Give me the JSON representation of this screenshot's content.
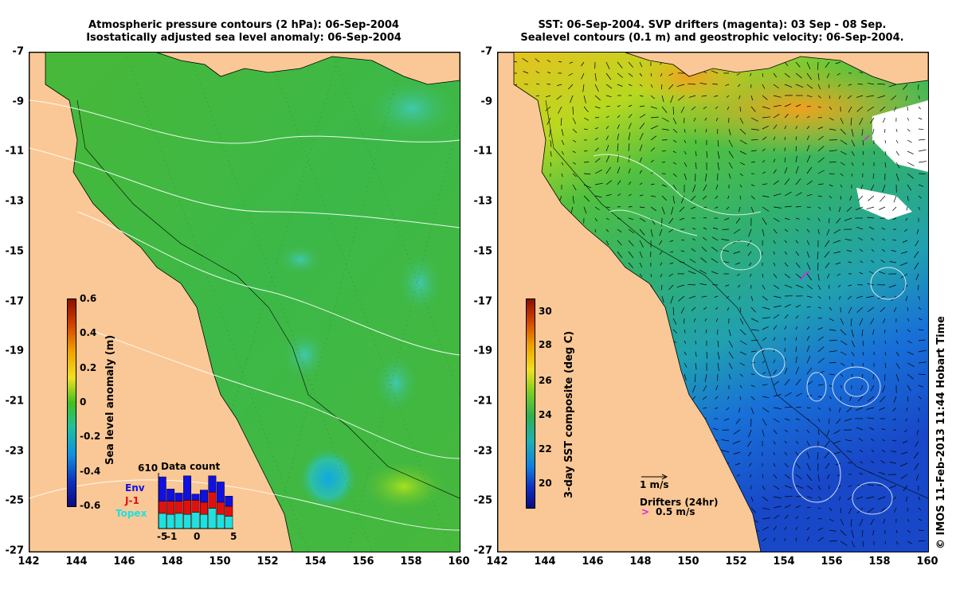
{
  "left_panel": {
    "title_line1": "Atmospheric pressure contours (2 hPa): 06-Sep-2004",
    "title_line2": "Isostatically adjusted sea level anomaly: 06-Sep-2004",
    "colorbar": {
      "title": "Sea level anomaly (m)",
      "ticks": [
        "0.6",
        "0.4",
        "0.2",
        "0",
        "-0.2",
        "-0.4",
        "-0.6"
      ],
      "range": [
        -0.6,
        0.6
      ]
    },
    "inset": {
      "title": "Data count",
      "ymax_label": "610",
      "legend": [
        {
          "label": "Env",
          "color": "#1010e0"
        },
        {
          "label": "J-1",
          "color": "#e01010"
        },
        {
          "label": "Topex",
          "color": "#20e0e0"
        }
      ],
      "xticks": [
        "-5",
        "-1",
        "0",
        "5"
      ],
      "bars": [
        {
          "day": -5,
          "topex": 15,
          "j1": 12,
          "env": 24
        },
        {
          "day": -4,
          "topex": 14,
          "j1": 13,
          "env": 12
        },
        {
          "day": -3,
          "topex": 15,
          "j1": 12,
          "env": 8
        },
        {
          "day": -2,
          "topex": 14,
          "j1": 14,
          "env": 24
        },
        {
          "day": -1,
          "topex": 16,
          "j1": 12,
          "env": 6
        },
        {
          "day": 0,
          "topex": 14,
          "j1": 12,
          "env": 12
        },
        {
          "day": 1,
          "topex": 20,
          "j1": 16,
          "env": 16
        },
        {
          "day": 2,
          "topex": 14,
          "j1": 12,
          "env": 20
        },
        {
          "day": 3,
          "topex": 12,
          "j1": 10,
          "env": 10
        }
      ]
    }
  },
  "right_panel": {
    "title_line1": "SST: 06-Sep-2004. SVP drifters (magenta): 03 Sep - 08 Sep.",
    "title_line2": "Sealevel contours (0.1 m) and geostrophic velocity: 06-Sep-2004.",
    "colorbar": {
      "title": "3-day SST composite (deg C)",
      "ticks": [
        "30",
        "28",
        "26",
        "24",
        "22",
        "20"
      ],
      "range": [
        19,
        31
      ]
    },
    "velocity_legend": "1 m/s",
    "drifters_legend_title": "Drifters (24hr)",
    "drifters_legend_speed": "0.5 m/s",
    "drifters_arrow_glyph": ">"
  },
  "axes": {
    "xticks": [
      "142",
      "144",
      "146",
      "148",
      "150",
      "152",
      "154",
      "156",
      "158",
      "160"
    ],
    "yticks": [
      "-7",
      "-9",
      "-11",
      "-13",
      "-15",
      "-17",
      "-19",
      "-21",
      "-23",
      "-25",
      "-27"
    ],
    "lon_range": [
      142,
      160
    ],
    "lat_range": [
      -27,
      -7
    ]
  },
  "credit": "© IMOS 11-Feb-2013 11:44 Hobart Time",
  "colors": {
    "land": "#fac896",
    "ocean_sla": "#40b840",
    "warm_sst": "#f0b030",
    "cool_sst": "#1060e0"
  }
}
